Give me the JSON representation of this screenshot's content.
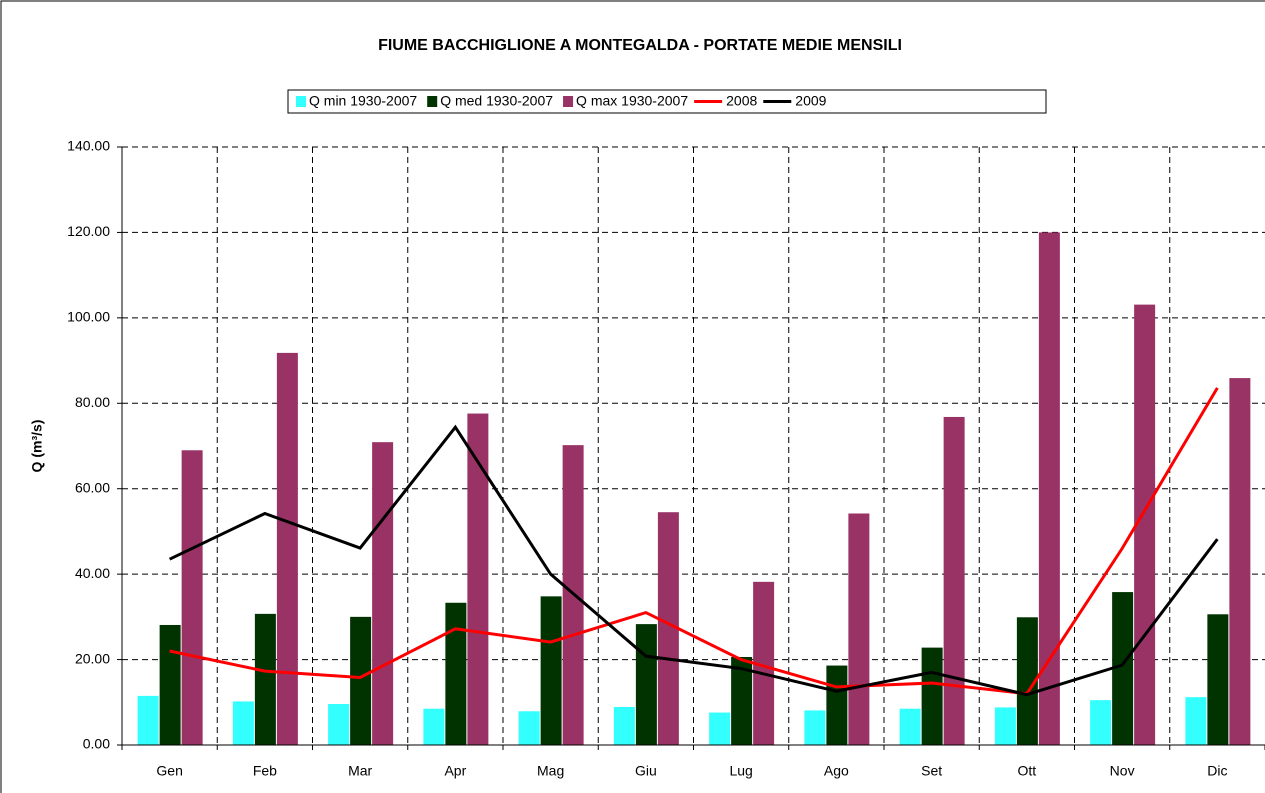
{
  "chart_data": {
    "type": "bar_line",
    "title": "FIUME BACCHIGLIONE A MONTEGALDA - PORTATE MEDIE MENSILI",
    "y_label": "Q (m³/s)",
    "categories": [
      "Gen",
      "Feb",
      "Mar",
      "Apr",
      "Mag",
      "Giu",
      "Lug",
      "Ago",
      "Set",
      "Ott",
      "Nov",
      "Dic"
    ],
    "ylim": [
      0,
      140
    ],
    "yticks": [
      {
        "value": 0,
        "label": "0.00"
      },
      {
        "value": 20,
        "label": "20.00"
      },
      {
        "value": 40,
        "label": "40.00"
      },
      {
        "value": 60,
        "label": "60.00"
      },
      {
        "value": 80,
        "label": "80.00"
      },
      {
        "value": 100,
        "label": "100.00"
      },
      {
        "value": 120,
        "label": "120.00"
      },
      {
        "value": 140,
        "label": "140.00"
      }
    ],
    "grid": true,
    "series": [
      {
        "name": "Q min 1930-2007",
        "kind": "bar",
        "color": "#33ffff",
        "values": [
          11.5,
          10.2,
          9.6,
          8.5,
          7.9,
          8.9,
          7.6,
          8.1,
          8.5,
          8.8,
          10.5,
          11.2
        ]
      },
      {
        "name": "Q med 1930-2007",
        "kind": "bar",
        "color": "#003300",
        "values": [
          28.1,
          30.7,
          30.0,
          33.3,
          34.8,
          28.3,
          20.6,
          18.6,
          22.8,
          29.9,
          35.8,
          30.6
        ]
      },
      {
        "name": "Q max 1930-2007",
        "kind": "bar",
        "color": "#993366",
        "values": [
          69.0,
          91.8,
          70.9,
          77.6,
          70.2,
          54.5,
          38.2,
          54.2,
          76.8,
          120.0,
          103.1,
          85.9
        ]
      },
      {
        "name": "2008",
        "kind": "line",
        "color": "#ff0000",
        "values": [
          22.0,
          17.3,
          15.8,
          27.2,
          24.1,
          31.0,
          20.0,
          13.6,
          14.5,
          12.0,
          46.0,
          83.6
        ]
      },
      {
        "name": "2009",
        "kind": "line",
        "color": "#000000",
        "values": [
          43.5,
          54.2,
          46.1,
          74.4,
          40.0,
          20.8,
          17.9,
          12.6,
          17.0,
          11.8,
          18.7,
          48.2
        ]
      }
    ]
  }
}
